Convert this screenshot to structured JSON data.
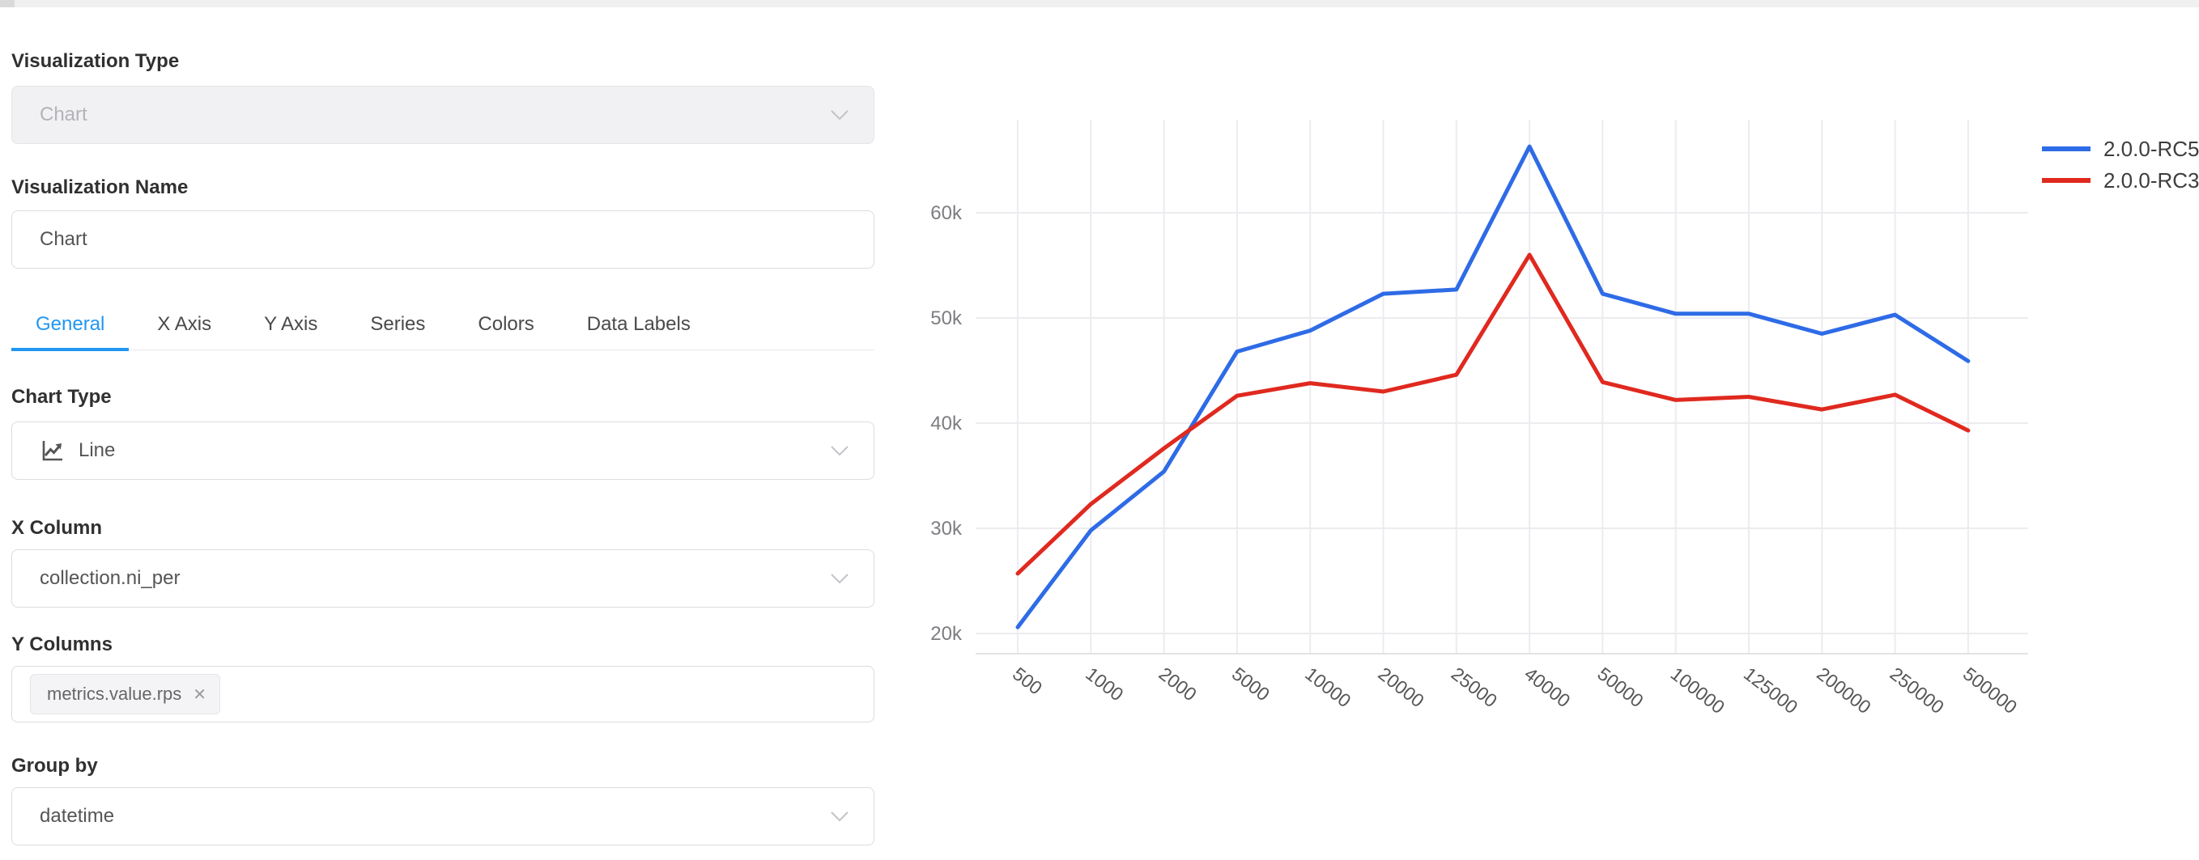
{
  "panel": {
    "viz_type": {
      "label": "Visualization Type",
      "value": "Chart"
    },
    "viz_name": {
      "label": "Visualization Name",
      "value": "Chart"
    },
    "tabs": [
      {
        "label": "General",
        "active": true
      },
      {
        "label": "X Axis",
        "active": false
      },
      {
        "label": "Y Axis",
        "active": false
      },
      {
        "label": "Series",
        "active": false
      },
      {
        "label": "Colors",
        "active": false
      },
      {
        "label": "Data Labels",
        "active": false
      }
    ],
    "chart_type": {
      "label": "Chart Type",
      "value": "Line",
      "icon": "line-chart-icon"
    },
    "x_column": {
      "label": "X Column",
      "value": "collection.ni_per"
    },
    "y_columns": {
      "label": "Y Columns",
      "tags": [
        {
          "text": "metrics.value.rps",
          "remove_glyph": "✕"
        }
      ]
    },
    "group_by": {
      "label": "Group by",
      "value": "datetime"
    }
  },
  "chart_data": {
    "type": "line",
    "categories": [
      "500",
      "1000",
      "2000",
      "5000",
      "10000",
      "20000",
      "25000",
      "40000",
      "50000",
      "100000",
      "125000",
      "200000",
      "250000",
      "500000"
    ],
    "series": [
      {
        "name": "2.0.0-RC5",
        "color": "#2e6be6",
        "values": [
          20600,
          29800,
          35400,
          46800,
          48800,
          52300,
          52700,
          66300,
          52300,
          50400,
          50400,
          48500,
          50300,
          45900
        ]
      },
      {
        "name": "2.0.0-RC3",
        "color": "#e0291f",
        "values": [
          25700,
          32300,
          37600,
          42600,
          43800,
          43000,
          44600,
          56000,
          43900,
          42200,
          42500,
          41300,
          42700,
          39300
        ]
      }
    ],
    "yticks": [
      {
        "v": 20000,
        "label": "20k"
      },
      {
        "v": 30000,
        "label": "30k"
      },
      {
        "v": 40000,
        "label": "40k"
      },
      {
        "v": 50000,
        "label": "50k"
      },
      {
        "v": 60000,
        "label": "60k"
      }
    ],
    "ylim": [
      18100,
      69200
    ],
    "grid": true,
    "legend_position": "top-right",
    "xlabel": "",
    "ylabel": "",
    "title": ""
  },
  "colors": {
    "accent_blue": "#2196f3",
    "series_blue": "#2e6be6",
    "series_red": "#e0291f",
    "grid": "#ececf0",
    "axis_text": "#7d7d82",
    "x_text": "#565656"
  }
}
